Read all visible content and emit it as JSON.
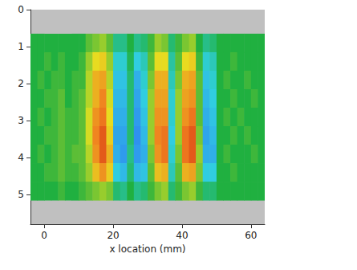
{
  "chart_data": {
    "type": "heatmap",
    "xlabel": "x location (mm)",
    "xlim": [
      -4,
      64
    ],
    "xticks": [
      0,
      20,
      40,
      60
    ],
    "ylim": [
      0,
      5.8
    ],
    "yticks": [
      0,
      1,
      2,
      3,
      4,
      5
    ],
    "grid": false,
    "x": [
      -3,
      -1,
      1,
      3,
      5,
      7,
      9,
      11,
      13,
      15,
      17,
      19,
      21,
      23,
      25,
      27,
      29,
      31,
      33,
      35,
      37,
      39,
      41,
      43,
      45,
      47,
      49,
      51,
      53,
      55,
      57,
      59,
      61,
      63
    ],
    "y": [
      0.9,
      1.4,
      1.9,
      2.4,
      2.9,
      3.4,
      3.9,
      4.4,
      4.9
    ],
    "z": [
      [
        0,
        0,
        0,
        0,
        0,
        0,
        0,
        0,
        0.1,
        0.15,
        0.2,
        0.1,
        -0.15,
        -0.15,
        0,
        -0.15,
        -0.1,
        0.05,
        0.2,
        0.15,
        -0.1,
        0.05,
        0.15,
        0.2,
        0,
        -0.15,
        -0.1,
        0,
        0,
        0,
        0,
        0,
        0,
        0
      ],
      [
        0,
        0,
        0.05,
        0,
        0.05,
        0,
        0,
        0.05,
        0.2,
        0.35,
        0.4,
        0.2,
        -0.3,
        -0.3,
        -0.05,
        -0.35,
        -0.25,
        0.1,
        0.35,
        0.35,
        -0.2,
        0.1,
        0.35,
        0.4,
        0.05,
        -0.3,
        -0.25,
        0,
        0,
        0.05,
        0,
        0,
        0,
        0
      ],
      [
        0,
        0.05,
        0,
        0.05,
        0.05,
        0,
        0.05,
        0.05,
        0.25,
        0.5,
        0.55,
        0.25,
        -0.4,
        -0.4,
        -0.1,
        -0.5,
        -0.3,
        0.15,
        0.5,
        0.5,
        -0.25,
        0.15,
        0.5,
        0.55,
        0.1,
        -0.4,
        -0.3,
        0,
        0.05,
        0,
        0,
        0.05,
        0,
        0
      ],
      [
        0,
        0,
        0.05,
        0.05,
        0.1,
        0,
        0.05,
        0.1,
        0.25,
        0.5,
        0.65,
        0.3,
        -0.45,
        -0.45,
        -0.1,
        -0.55,
        -0.35,
        0.2,
        0.55,
        0.55,
        -0.3,
        0.2,
        0.55,
        0.6,
        0.1,
        -0.45,
        -0.35,
        0,
        0,
        0.05,
        0,
        0,
        0.05,
        0
      ],
      [
        0,
        0.05,
        0,
        0.05,
        0.1,
        0.05,
        0.05,
        0.1,
        0.3,
        0.6,
        0.7,
        0.35,
        -0.5,
        -0.5,
        -0.1,
        -0.6,
        -0.4,
        0.2,
        0.6,
        0.6,
        -0.3,
        0.2,
        0.6,
        0.7,
        0.1,
        -0.5,
        -0.4,
        0,
        0.05,
        0,
        0.05,
        0,
        0,
        0
      ],
      [
        0,
        0,
        0.05,
        0.05,
        0.1,
        0.05,
        0.05,
        0.1,
        0.3,
        0.65,
        0.8,
        0.4,
        -0.55,
        -0.55,
        -0.1,
        -0.65,
        -0.45,
        0.2,
        0.65,
        0.7,
        -0.35,
        0.2,
        0.7,
        0.8,
        0.15,
        -0.55,
        -0.45,
        0,
        0,
        0.05,
        0,
        0.05,
        0,
        0
      ],
      [
        0,
        0.05,
        0,
        0.05,
        0.1,
        0.05,
        0.1,
        0.1,
        0.25,
        0.6,
        0.8,
        0.5,
        -0.5,
        -0.6,
        -0.15,
        -0.6,
        -0.5,
        0.15,
        0.6,
        0.7,
        -0.3,
        0.15,
        0.7,
        0.8,
        0.2,
        -0.5,
        -0.5,
        0,
        0.05,
        0,
        0,
        0,
        0.05,
        0
      ],
      [
        0,
        0,
        0.05,
        0.05,
        0.1,
        0.05,
        0.05,
        0.1,
        0.2,
        0.45,
        0.6,
        0.4,
        -0.35,
        -0.45,
        -0.1,
        -0.45,
        -0.4,
        0.1,
        0.45,
        0.5,
        -0.25,
        0.1,
        0.5,
        0.55,
        0.15,
        -0.35,
        -0.35,
        0,
        0,
        0.05,
        0,
        0,
        0,
        0
      ],
      [
        0,
        0,
        0,
        0,
        0.05,
        0,
        0,
        0.05,
        0.1,
        0.15,
        0.2,
        0.15,
        -0.1,
        -0.15,
        0,
        -0.15,
        -0.1,
        0.05,
        0.15,
        0.2,
        -0.1,
        0.05,
        0.15,
        0.2,
        0.05,
        -0.1,
        -0.1,
        0,
        0,
        0,
        0,
        0,
        0,
        0
      ]
    ],
    "color_range": [
      -1,
      1
    ]
  }
}
